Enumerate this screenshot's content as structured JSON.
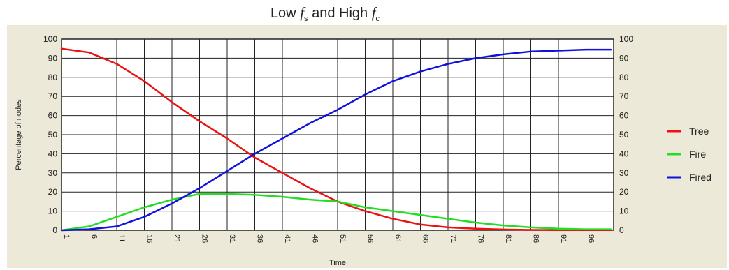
{
  "chart_data": {
    "type": "line",
    "title": {
      "prefix": "Low ",
      "f1": "f",
      "f1_sub": "s",
      "middle": " and High ",
      "f2": "f",
      "f2_sub": "c"
    },
    "xlabel": "Time",
    "ylabel": "Percentage of nodes",
    "x": [
      1,
      6,
      11,
      16,
      21,
      26,
      31,
      36,
      41,
      46,
      51,
      56,
      61,
      66,
      71,
      76,
      81,
      86,
      91,
      96
    ],
    "ylim": [
      0,
      100
    ],
    "yticks": [
      0,
      10,
      20,
      30,
      40,
      50,
      60,
      70,
      80,
      90,
      100
    ],
    "grid": true,
    "legend_position": "right",
    "series": [
      {
        "name": "Tree",
        "color": "#ee1111",
        "values": [
          95,
          93,
          87,
          78,
          67,
          57,
          48,
          38,
          30,
          22,
          15,
          10,
          6,
          3,
          1.5,
          0.8,
          0.4,
          0.2,
          0.1,
          0.1
        ]
      },
      {
        "name": "Fire",
        "color": "#22dd22",
        "values": [
          0,
          2,
          7,
          12,
          16,
          19,
          19,
          18.5,
          17.5,
          16,
          15,
          12,
          10,
          8,
          6,
          4,
          2.5,
          1.5,
          0.8,
          0.5
        ]
      },
      {
        "name": "Fired",
        "color": "#1111dd",
        "values": [
          0,
          0.5,
          2,
          7,
          14,
          22,
          31,
          40,
          48,
          56,
          63,
          71,
          78,
          83,
          87,
          90,
          92,
          93.5,
          94,
          94.5
        ]
      }
    ]
  }
}
